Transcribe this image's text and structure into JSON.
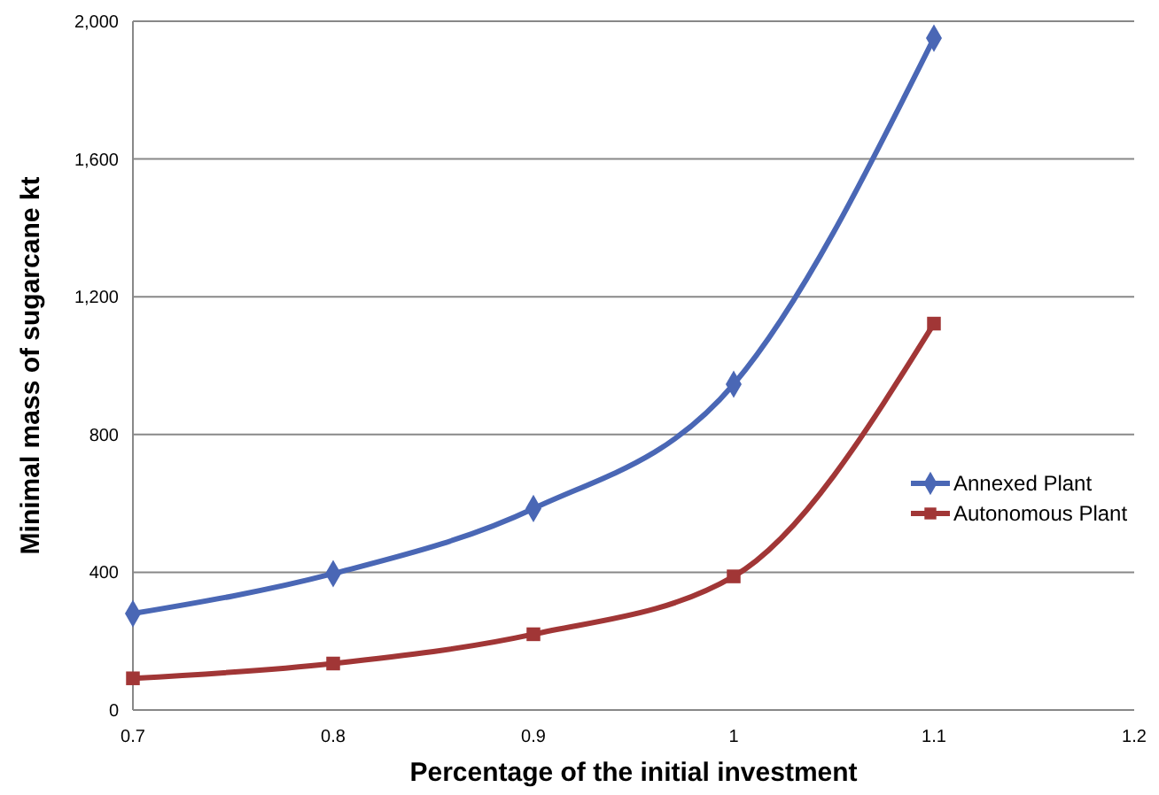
{
  "chart_data": {
    "type": "line",
    "xlabel": "Percentage of the initial investment",
    "ylabel": "Minimal mass of sugarcane  kt",
    "x": [
      0.7,
      0.8,
      0.9,
      1,
      1.1
    ],
    "series": [
      {
        "name": "Annexed Plant",
        "color": "#4a67b5",
        "marker": "diamond",
        "values": [
          280,
          396,
          585,
          946,
          1951
        ]
      },
      {
        "name": "Autonomous Plant",
        "color": "#a13636",
        "marker": "square",
        "values": [
          92,
          135,
          220,
          388,
          1122
        ]
      }
    ],
    "xlim": [
      0.7,
      1.2
    ],
    "xticks": [
      0.7,
      0.8,
      0.9,
      1,
      1.1,
      1.2
    ],
    "ylim": [
      0,
      2000
    ],
    "yticks": [
      0,
      {
        "value": 400,
        "label": "400"
      },
      {
        "value": 800,
        "label": "800"
      },
      {
        "value": 1200,
        "label": "1,200"
      },
      {
        "value": 1600,
        "label": "1,600"
      },
      {
        "value": 2000,
        "label": "2,000"
      }
    ],
    "grid": "y",
    "legend": "right",
    "line_style": "solid"
  }
}
